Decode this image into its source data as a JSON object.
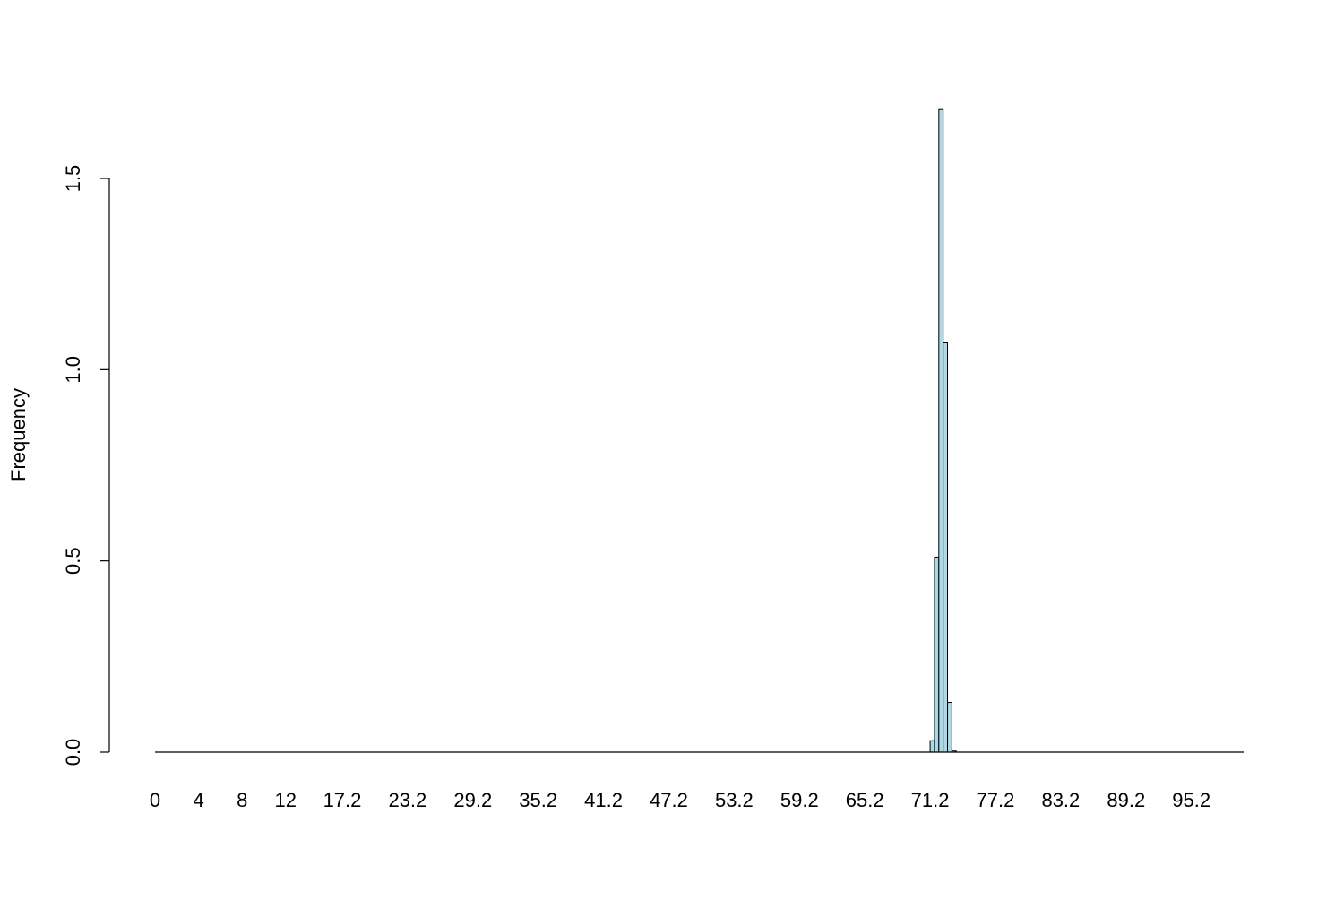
{
  "chart_data": {
    "type": "bar",
    "title": "",
    "xlabel": "",
    "ylabel": "Frequency",
    "xlim": [
      0,
      100
    ],
    "ylim": [
      0,
      1.7
    ],
    "grid": false,
    "legend": "none",
    "bar_fill": "#add8e6",
    "bar_stroke": "#000000",
    "x_tick_labels": [
      {
        "value": 0,
        "label": "0"
      },
      {
        "value": 4,
        "label": "4"
      },
      {
        "value": 8,
        "label": "8"
      },
      {
        "value": 12,
        "label": "12"
      },
      {
        "value": 17.2,
        "label": "17.2"
      },
      {
        "value": 23.2,
        "label": "23.2"
      },
      {
        "value": 29.2,
        "label": "29.2"
      },
      {
        "value": 35.2,
        "label": "35.2"
      },
      {
        "value": 41.2,
        "label": "41.2"
      },
      {
        "value": 47.2,
        "label": "47.2"
      },
      {
        "value": 53.2,
        "label": "53.2"
      },
      {
        "value": 59.2,
        "label": "59.2"
      },
      {
        "value": 65.2,
        "label": "65.2"
      },
      {
        "value": 71.2,
        "label": "71.2"
      },
      {
        "value": 77.2,
        "label": "77.2"
      },
      {
        "value": 83.2,
        "label": "83.2"
      },
      {
        "value": 89.2,
        "label": "89.2"
      },
      {
        "value": 95.2,
        "label": "95.2"
      }
    ],
    "y_ticks": [
      {
        "value": 0,
        "label": "0.0"
      },
      {
        "value": 0.5,
        "label": "0.5"
      },
      {
        "value": 1.0,
        "label": "1.0"
      },
      {
        "value": 1.5,
        "label": "1.5"
      }
    ],
    "bars": [
      {
        "x0": 71.2,
        "x1": 71.6,
        "y": 0.03
      },
      {
        "x0": 71.6,
        "x1": 72.0,
        "y": 0.51
      },
      {
        "x0": 72.0,
        "x1": 72.4,
        "y": 1.68
      },
      {
        "x0": 72.4,
        "x1": 72.8,
        "y": 1.07
      },
      {
        "x0": 72.8,
        "x1": 73.2,
        "y": 0.13
      },
      {
        "x0": 73.2,
        "x1": 73.6,
        "y": 0.003
      }
    ]
  }
}
